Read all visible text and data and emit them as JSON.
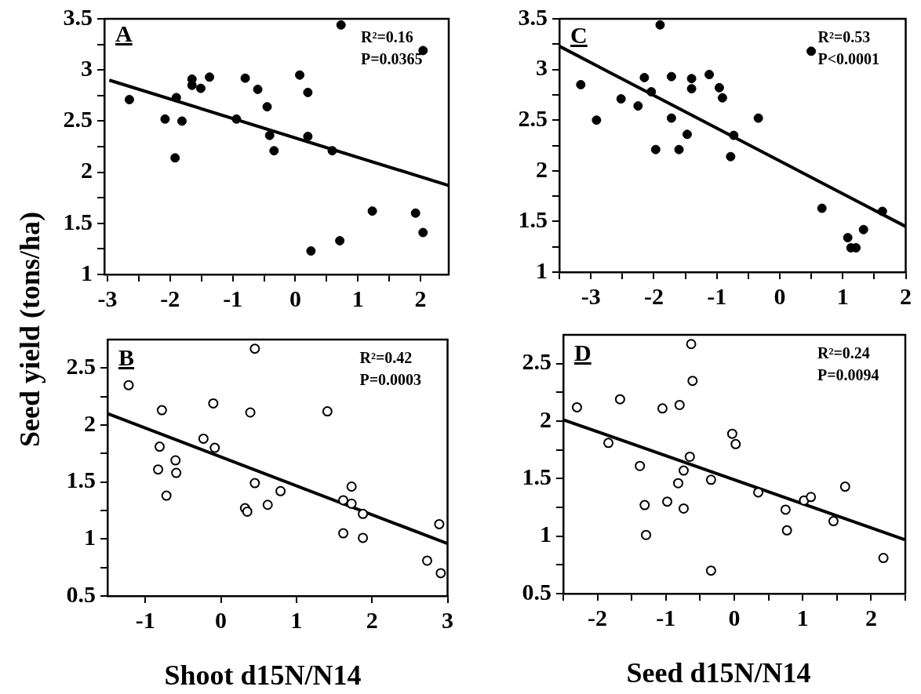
{
  "chart_data": [
    {
      "type": "scatter",
      "title": "A",
      "ylabel": "Seed yield (tons/ha)",
      "annotations": [
        "R²=0.16",
        "P=0.0365"
      ],
      "marker": "circle",
      "legend": false,
      "grid": false,
      "xlim": [
        -3.05,
        2.45
      ],
      "xticks": [
        -3,
        {
          "value": -2.5,
          "label": null
        },
        -2,
        {
          "value": -1.5,
          "label": null
        },
        -1,
        {
          "value": -0.5,
          "label": null
        },
        0,
        {
          "value": 0.5,
          "label": null
        },
        1,
        {
          "value": 1.5,
          "label": null
        },
        2
      ],
      "ylim": [
        1,
        3.5
      ],
      "yticks": [
        1,
        {
          "value": 1.25,
          "label": null
        },
        1.5,
        {
          "value": 1.75,
          "label": null
        },
        2,
        {
          "value": 2.25,
          "label": null
        },
        2.5,
        {
          "value": 2.75,
          "label": null
        },
        3,
        {
          "value": 3.25,
          "label": null
        },
        3.5
      ],
      "series": [
        {
          "type": "scatter",
          "color": "#000000",
          "x": [
            -2.65,
            -2.08,
            -1.9,
            -1.92,
            -1.81,
            -1.65,
            -1.65,
            -1.51,
            -1.37,
            -0.94,
            -0.8,
            -0.6,
            -0.45,
            -0.41,
            -0.34,
            0.07,
            0.2,
            0.2,
            0.25,
            0.59,
            0.71,
            0.73,
            1.23,
            1.92,
            2.04,
            2.04
          ],
          "values": [
            2.71,
            2.52,
            2.73,
            2.14,
            2.5,
            2.91,
            2.85,
            2.82,
            2.93,
            2.52,
            2.92,
            2.81,
            2.64,
            2.36,
            2.21,
            2.95,
            2.78,
            2.35,
            1.23,
            2.21,
            1.33,
            3.44,
            1.62,
            1.6,
            1.41,
            3.19
          ]
        },
        {
          "type": "line",
          "color": "#000000",
          "marker": "none",
          "x": [
            -2.97,
            2.45
          ],
          "values": [
            2.9,
            1.87
          ]
        }
      ]
    },
    {
      "type": "scatter",
      "title": "C",
      "annotations": [
        "R²=0.53",
        "P<0.0001"
      ],
      "marker": "circle",
      "legend": false,
      "grid": false,
      "xlim": [
        -3.5,
        2
      ],
      "xticks": [
        {
          "value": -3.5,
          "label": null
        },
        -3,
        {
          "value": -2.5,
          "label": null
        },
        -2,
        {
          "value": -1.5,
          "label": null
        },
        -1,
        {
          "value": -0.5,
          "label": null
        },
        0,
        {
          "value": 0.5,
          "label": null
        },
        1,
        {
          "value": 1.5,
          "label": null
        },
        2
      ],
      "ylim": [
        1,
        3.5
      ],
      "yticks": [
        1,
        {
          "value": 1.25,
          "label": null
        },
        1.5,
        {
          "value": 1.75,
          "label": null
        },
        2,
        {
          "value": 2.25,
          "label": null
        },
        2.5,
        {
          "value": 2.75,
          "label": null
        },
        3,
        {
          "value": 3.25,
          "label": null
        },
        3.5
      ],
      "series": [
        {
          "type": "scatter",
          "color": "#000000",
          "x": [
            -3.16,
            -2.91,
            -2.52,
            -2.25,
            -2.15,
            -2.04,
            -1.97,
            -1.9,
            -1.72,
            -1.72,
            -1.6,
            -1.47,
            -1.4,
            -1.4,
            -1.12,
            -0.96,
            -0.91,
            -0.78,
            -0.73,
            -0.34,
            0.5,
            0.67,
            1.08,
            1.13,
            1.21,
            1.33,
            1.63
          ],
          "values": [
            2.85,
            2.5,
            2.71,
            2.64,
            2.92,
            2.78,
            2.21,
            3.44,
            2.93,
            2.52,
            2.21,
            2.36,
            2.91,
            2.81,
            2.95,
            2.82,
            2.72,
            2.14,
            2.35,
            2.52,
            3.18,
            1.63,
            1.34,
            1.24,
            1.24,
            1.42,
            1.6
          ]
        },
        {
          "type": "line",
          "color": "#000000",
          "marker": "none",
          "x": [
            -3.5,
            2
          ],
          "values": [
            3.23,
            1.45
          ]
        }
      ]
    },
    {
      "type": "scatter",
      "title": "B",
      "xlabel": "Shoot d15N/N14",
      "annotations": [
        "R²=0.42",
        "P=0.0003"
      ],
      "marker": "circle",
      "legend": false,
      "grid": false,
      "xlim": [
        -1.5,
        3
      ],
      "xticks": [
        -1,
        0,
        1,
        2,
        3
      ],
      "ylim": [
        0.5,
        2.75
      ],
      "yticks": [
        0.5,
        {
          "value": 0.75,
          "label": null
        },
        1,
        {
          "value": 1.25,
          "label": null
        },
        1.5,
        {
          "value": 1.75,
          "label": null
        },
        2,
        {
          "value": 2.25,
          "label": null
        },
        2.5
      ],
      "series": [
        {
          "type": "scatter",
          "color": "#000000",
          "x": [
            -1.22,
            -0.78,
            -0.81,
            -0.83,
            -0.6,
            -0.59,
            -0.72,
            -0.23,
            -0.1,
            -0.08,
            0.32,
            0.35,
            0.39,
            0.45,
            0.45,
            0.62,
            0.79,
            1.41,
            1.62,
            1.62,
            1.73,
            1.73,
            1.88,
            1.88,
            2.73,
            2.89,
            2.91
          ],
          "values": [
            2.35,
            2.13,
            1.81,
            1.61,
            1.69,
            1.58,
            1.38,
            1.88,
            2.19,
            1.8,
            1.27,
            1.24,
            2.11,
            2.67,
            1.49,
            1.3,
            1.42,
            2.12,
            1.34,
            1.05,
            1.46,
            1.31,
            1.22,
            1.01,
            0.81,
            1.13,
            0.7
          ]
        },
        {
          "type": "line",
          "color": "#000000",
          "marker": "none",
          "x": [
            -1.5,
            3
          ],
          "values": [
            2.1,
            0.96
          ]
        }
      ]
    },
    {
      "type": "scatter",
      "title": "D",
      "xlabel": "Seed d15N/N14",
      "annotations": [
        "R²=0.24",
        "P=0.0094"
      ],
      "marker": "circle",
      "legend": false,
      "grid": false,
      "xlim": [
        -2.5,
        2.5
      ],
      "xticks": [
        {
          "value": -2.5,
          "label": null
        },
        -2,
        {
          "value": -1.5,
          "label": null
        },
        -1,
        {
          "value": -0.5,
          "label": null
        },
        0,
        {
          "value": 0.5,
          "label": null
        },
        1,
        {
          "value": 1.5,
          "label": null
        },
        2,
        {
          "value": 2.5,
          "label": null
        }
      ],
      "ylim": [
        0.5,
        2.75
      ],
      "yticks": [
        0.5,
        {
          "value": 0.75,
          "label": null
        },
        1,
        {
          "value": 1.25,
          "label": null
        },
        1.5,
        {
          "value": 1.75,
          "label": null
        },
        2,
        {
          "value": 2.25,
          "label": null
        },
        2.5
      ],
      "series": [
        {
          "type": "scatter",
          "color": "#000000",
          "x": [
            -2.3,
            -1.67,
            -1.84,
            -1.38,
            -1.31,
            -1.29,
            -1.05,
            -0.98,
            -0.8,
            -0.82,
            -0.74,
            -0.74,
            -0.65,
            -0.63,
            -0.61,
            -0.34,
            -0.34,
            -0.03,
            0.02,
            0.35,
            0.75,
            0.77,
            1.02,
            1.12,
            1.45,
            1.62,
            2.18
          ],
          "values": [
            2.12,
            2.19,
            1.81,
            1.61,
            1.27,
            1.01,
            2.11,
            1.3,
            2.14,
            1.46,
            1.57,
            1.24,
            1.69,
            2.67,
            2.35,
            1.49,
            0.7,
            1.89,
            1.8,
            1.38,
            1.23,
            1.05,
            1.31,
            1.34,
            1.13,
            1.43,
            0.81
          ]
        },
        {
          "type": "line",
          "color": "#000000",
          "marker": "none",
          "x": [
            -2.49,
            2.49
          ],
          "values": [
            2.01,
            0.97
          ]
        }
      ]
    }
  ]
}
